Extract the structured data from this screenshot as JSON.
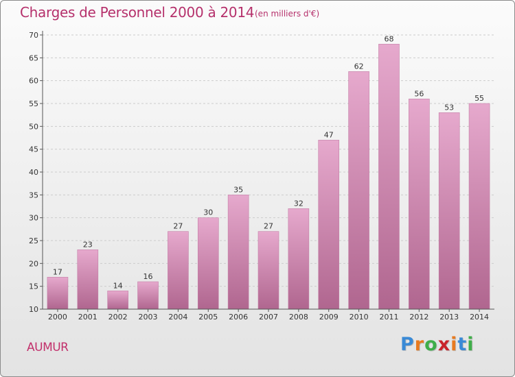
{
  "header": {
    "title": "Charges de Personnel 2000 à 2014",
    "subtitle": "(en milliers d'€)"
  },
  "footer": {
    "location": "AUMUR",
    "logo_letters": [
      "P",
      "r",
      "o",
      "x",
      "i",
      "t",
      "i"
    ],
    "logo_colors": [
      "#3a8ad6",
      "#e87a1f",
      "#3fae49",
      "#c9242b",
      "#e87a1f",
      "#3a8ad6",
      "#3fae49"
    ]
  },
  "colors": {
    "bar_top": "#e6a9cd",
    "bar_bottom": "#b0668f",
    "bar_edge": "#c47fa7",
    "grid": "#cccccc",
    "axis": "#555555",
    "title": "#b5306b"
  },
  "chart_data": {
    "type": "bar",
    "title": "Charges de Personnel 2000 à 2014",
    "subtitle": "(en milliers d'€)",
    "xlabel": "",
    "ylabel": "",
    "categories": [
      "2000",
      "2001",
      "2002",
      "2003",
      "2004",
      "2005",
      "2006",
      "2007",
      "2008",
      "2009",
      "2010",
      "2011",
      "2012",
      "2013",
      "2014"
    ],
    "values": [
      17,
      23,
      14,
      16,
      27,
      30,
      35,
      27,
      32,
      47,
      62,
      68,
      56,
      53,
      55
    ],
    "ylim": [
      10,
      70
    ],
    "yticks": [
      10,
      15,
      20,
      25,
      30,
      35,
      40,
      45,
      50,
      55,
      60,
      65,
      70
    ],
    "grid": "horizontal dashed",
    "legend": "none"
  }
}
